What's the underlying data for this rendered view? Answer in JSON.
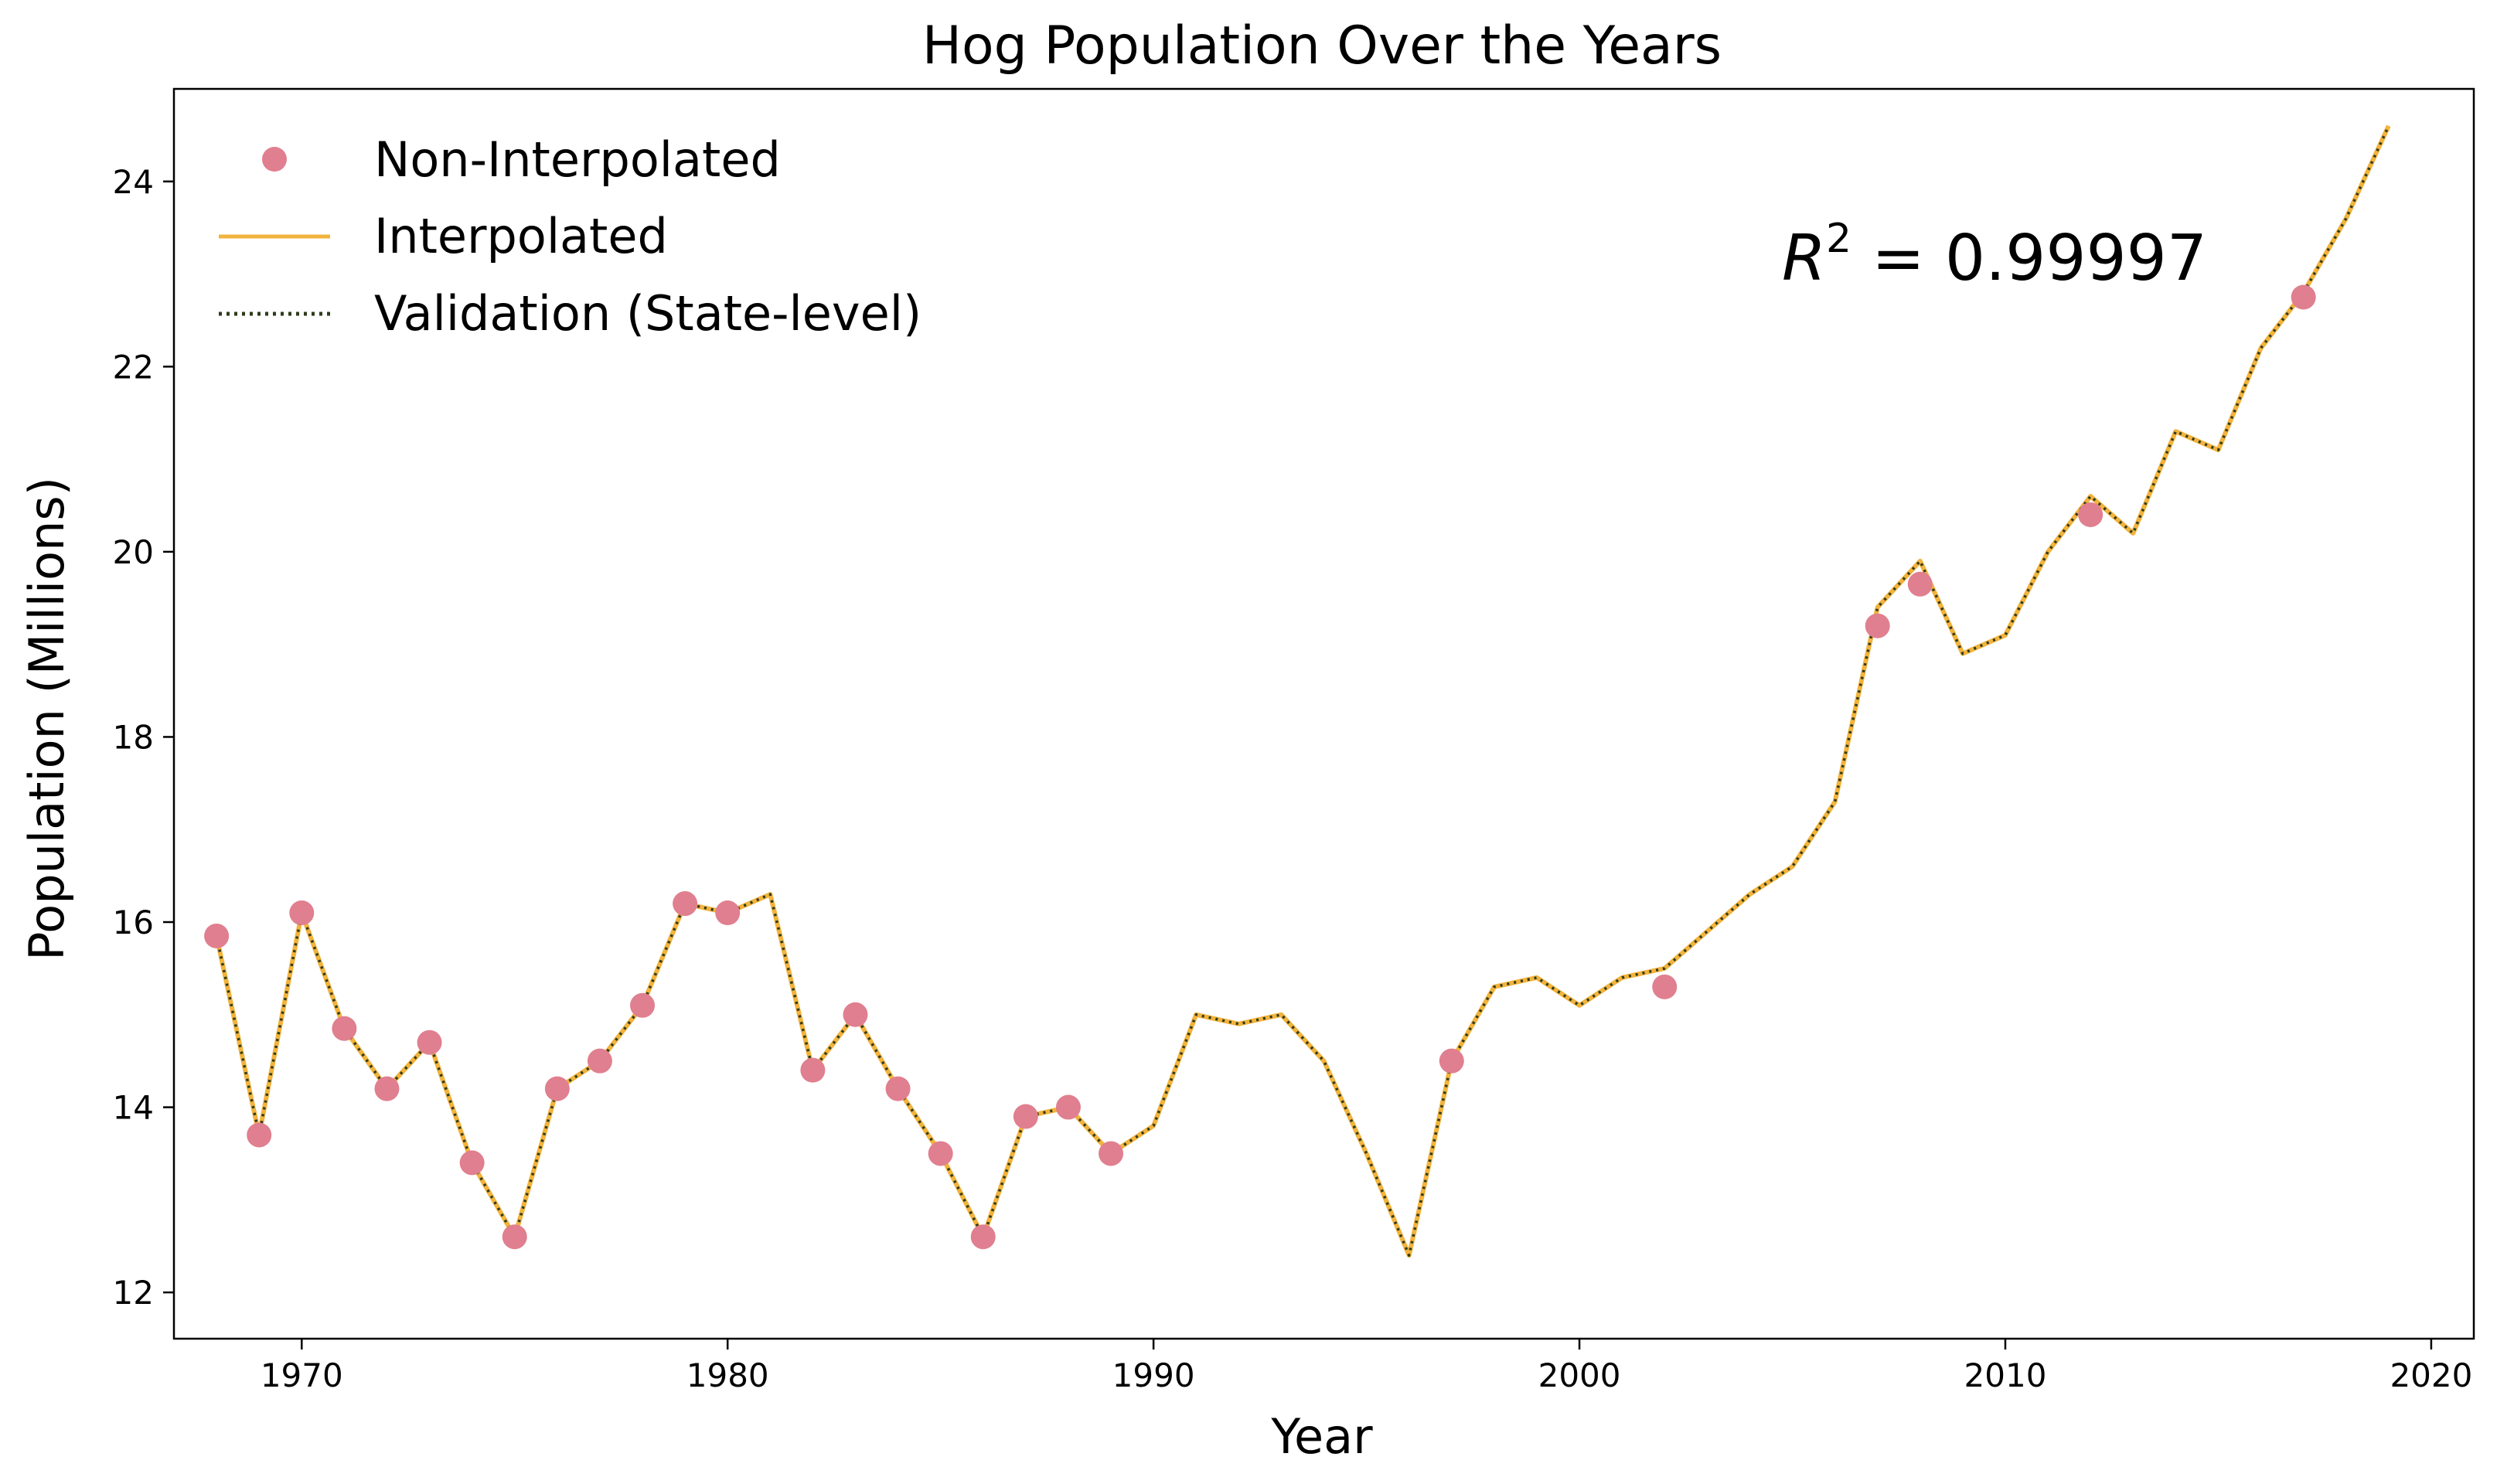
{
  "chart_data": {
    "type": "line",
    "title": "Hog Population Over the Years",
    "xlabel": "Year",
    "ylabel": "Population (Millions)",
    "xlim": [
      1967,
      2021
    ],
    "ylim": [
      11.5,
      25.0
    ],
    "x_ticks": [
      1970,
      1980,
      1990,
      2000,
      2010,
      2020
    ],
    "y_ticks": [
      12,
      14,
      16,
      18,
      20,
      22,
      24
    ],
    "grid": false,
    "legend_position": "top-left",
    "annotation": {
      "r2_symbol": "R",
      "r2_exponent": "2",
      "r2_text": " = 0.99997"
    },
    "colors": {
      "non_interpolated": "#e07f8f",
      "interpolated": "#f2b33d",
      "validation": "#2f3b1c"
    },
    "series": [
      {
        "name": "Non-Interpolated",
        "style": "points",
        "x": [
          1968,
          1969,
          1970,
          1971,
          1972,
          1973,
          1974,
          1975,
          1976,
          1977,
          1978,
          1979,
          1980,
          1982,
          1983,
          1984,
          1985,
          1986,
          1987,
          1988,
          1989,
          1997,
          2002,
          2007,
          2008,
          2012,
          2017
        ],
        "y": [
          15.85,
          13.7,
          16.1,
          14.85,
          14.2,
          14.7,
          13.4,
          12.6,
          14.2,
          14.5,
          15.1,
          16.2,
          16.1,
          14.4,
          15.0,
          14.2,
          13.5,
          12.6,
          13.9,
          14.0,
          13.5,
          14.5,
          15.3,
          19.2,
          19.65,
          20.4,
          22.75
        ]
      },
      {
        "name": "Interpolated",
        "style": "solid",
        "x": [
          1968,
          1969,
          1970,
          1971,
          1972,
          1973,
          1974,
          1975,
          1976,
          1977,
          1978,
          1979,
          1980,
          1981,
          1982,
          1983,
          1984,
          1985,
          1986,
          1987,
          1988,
          1989,
          1990,
          1991,
          1992,
          1993,
          1994,
          1995,
          1996,
          1997,
          1998,
          1999,
          2000,
          2001,
          2002,
          2003,
          2004,
          2005,
          2006,
          2007,
          2008,
          2009,
          2010,
          2011,
          2012,
          2013,
          2014,
          2015,
          2016,
          2017,
          2018,
          2019
        ],
        "y": [
          15.85,
          13.7,
          16.1,
          14.85,
          14.2,
          14.7,
          13.4,
          12.6,
          14.2,
          14.5,
          15.1,
          16.2,
          16.1,
          16.3,
          14.4,
          15.0,
          14.2,
          13.5,
          12.6,
          13.9,
          14.0,
          13.5,
          13.8,
          15.0,
          14.9,
          15.0,
          14.5,
          13.5,
          12.4,
          14.5,
          15.3,
          15.4,
          15.1,
          15.4,
          15.5,
          15.9,
          16.3,
          16.6,
          17.3,
          19.4,
          19.9,
          18.9,
          19.1,
          20.0,
          20.6,
          20.2,
          21.3,
          21.1,
          22.2,
          22.8,
          23.6,
          24.6
        ]
      },
      {
        "name": "Validation (State-level)",
        "style": "dotted",
        "x": [
          1968,
          1969,
          1970,
          1971,
          1972,
          1973,
          1974,
          1975,
          1976,
          1977,
          1978,
          1979,
          1980,
          1981,
          1982,
          1983,
          1984,
          1985,
          1986,
          1987,
          1988,
          1989,
          1990,
          1991,
          1992,
          1993,
          1994,
          1995,
          1996,
          1997,
          1998,
          1999,
          2000,
          2001,
          2002,
          2003,
          2004,
          2005,
          2006,
          2007,
          2008,
          2009,
          2010,
          2011,
          2012,
          2013,
          2014,
          2015,
          2016,
          2017,
          2018,
          2019
        ],
        "y": [
          15.85,
          13.7,
          16.1,
          14.85,
          14.2,
          14.7,
          13.4,
          12.6,
          14.2,
          14.5,
          15.1,
          16.2,
          16.1,
          16.3,
          14.4,
          15.0,
          14.2,
          13.5,
          12.6,
          13.9,
          14.0,
          13.5,
          13.8,
          15.0,
          14.9,
          15.0,
          14.5,
          13.5,
          12.4,
          14.5,
          15.3,
          15.4,
          15.1,
          15.4,
          15.5,
          15.9,
          16.3,
          16.6,
          17.3,
          19.4,
          19.9,
          18.9,
          19.1,
          20.0,
          20.6,
          20.2,
          21.3,
          21.1,
          22.2,
          22.8,
          23.6,
          24.6
        ]
      }
    ]
  }
}
